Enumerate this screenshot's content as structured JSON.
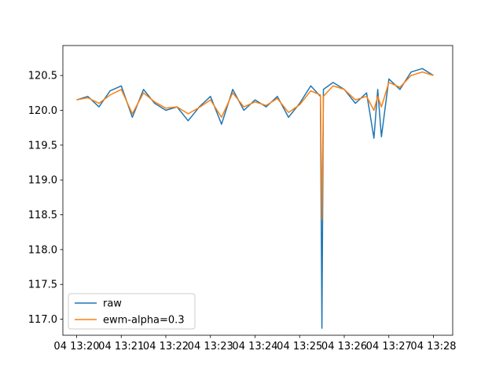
{
  "chart_data": {
    "type": "line",
    "title": "",
    "xlabel": "",
    "ylabel": "",
    "x_range": [
      "04 13:20",
      "04 13:28"
    ],
    "ylim": [
      116.77,
      120.93
    ],
    "grid": false,
    "legend_position": "lower-left",
    "x_ticks": [
      {
        "value": "04 13:20",
        "label": "04 13:20"
      },
      {
        "value": "04 13:21",
        "label": "04 13:21"
      },
      {
        "value": "04 13:22",
        "label": "04 13:22"
      },
      {
        "value": "04 13:23",
        "label": "04 13:23"
      },
      {
        "value": "04 13:24",
        "label": "04 13:24"
      },
      {
        "value": "04 13:25",
        "label": "04 13:25"
      },
      {
        "value": "04 13:26",
        "label": "04 13:26"
      },
      {
        "value": "04 13:27",
        "label": "04 13:27"
      },
      {
        "value": "04 13:28",
        "label": "04 13:28"
      }
    ],
    "y_ticks": [
      {
        "value": 117.0,
        "label": "117.0"
      },
      {
        "value": 117.5,
        "label": "117.5"
      },
      {
        "value": 118.0,
        "label": "118.0"
      },
      {
        "value": 118.5,
        "label": "118.5"
      },
      {
        "value": 119.0,
        "label": "119.0"
      },
      {
        "value": 119.5,
        "label": "119.5"
      },
      {
        "value": 120.0,
        "label": "120.0"
      },
      {
        "value": 120.5,
        "label": "120.5"
      }
    ],
    "series": [
      {
        "name": "raw",
        "color": "#1f77b4",
        "x": [
          "04 13:20:00",
          "04 13:20:15",
          "04 13:20:30",
          "04 13:20:45",
          "04 13:21:00",
          "04 13:21:15",
          "04 13:21:30",
          "04 13:21:45",
          "04 13:22:00",
          "04 13:22:15",
          "04 13:22:30",
          "04 13:22:45",
          "04 13:23:00",
          "04 13:23:15",
          "04 13:23:30",
          "04 13:23:45",
          "04 13:24:00",
          "04 13:24:15",
          "04 13:24:30",
          "04 13:24:45",
          "04 13:25:00",
          "04 13:25:15",
          "04 13:25:28",
          "04 13:25:30",
          "04 13:25:32",
          "04 13:25:45",
          "04 13:26:00",
          "04 13:26:15",
          "04 13:26:30",
          "04 13:26:40",
          "04 13:26:45",
          "04 13:26:50",
          "04 13:27:00",
          "04 13:27:15",
          "04 13:27:30",
          "04 13:27:45",
          "04 13:28:00"
        ],
        "y": [
          120.15,
          120.2,
          120.05,
          120.28,
          120.35,
          119.9,
          120.3,
          120.1,
          120.0,
          120.05,
          119.85,
          120.05,
          120.2,
          119.8,
          120.3,
          120.0,
          120.15,
          120.05,
          120.2,
          119.9,
          120.1,
          120.35,
          120.2,
          116.87,
          120.3,
          120.4,
          120.3,
          120.1,
          120.25,
          119.6,
          120.3,
          119.62,
          120.45,
          120.3,
          120.55,
          120.6,
          120.5
        ]
      },
      {
        "name": "ewm-alpha=0.3",
        "color": "#ff7f0e",
        "x": [
          "04 13:20:00",
          "04 13:20:15",
          "04 13:20:30",
          "04 13:20:45",
          "04 13:21:00",
          "04 13:21:15",
          "04 13:21:30",
          "04 13:21:45",
          "04 13:22:00",
          "04 13:22:15",
          "04 13:22:30",
          "04 13:22:45",
          "04 13:23:00",
          "04 13:23:15",
          "04 13:23:30",
          "04 13:23:45",
          "04 13:24:00",
          "04 13:24:15",
          "04 13:24:30",
          "04 13:24:45",
          "04 13:25:00",
          "04 13:25:15",
          "04 13:25:28",
          "04 13:25:30",
          "04 13:25:32",
          "04 13:25:45",
          "04 13:26:00",
          "04 13:26:15",
          "04 13:26:30",
          "04 13:26:40",
          "04 13:26:45",
          "04 13:26:50",
          "04 13:27:00",
          "04 13:27:15",
          "04 13:27:30",
          "04 13:27:45",
          "04 13:28:00"
        ],
        "y": [
          120.15,
          120.18,
          120.1,
          120.22,
          120.3,
          119.95,
          120.25,
          120.12,
          120.03,
          120.05,
          119.95,
          120.04,
          120.15,
          119.9,
          120.25,
          120.05,
          120.12,
          120.07,
          120.17,
          119.97,
          120.08,
          120.28,
          120.22,
          118.43,
          120.2,
          120.35,
          120.3,
          120.15,
          120.2,
          120.0,
          120.2,
          120.05,
          120.4,
          120.33,
          120.5,
          120.55,
          120.5
        ]
      }
    ]
  }
}
